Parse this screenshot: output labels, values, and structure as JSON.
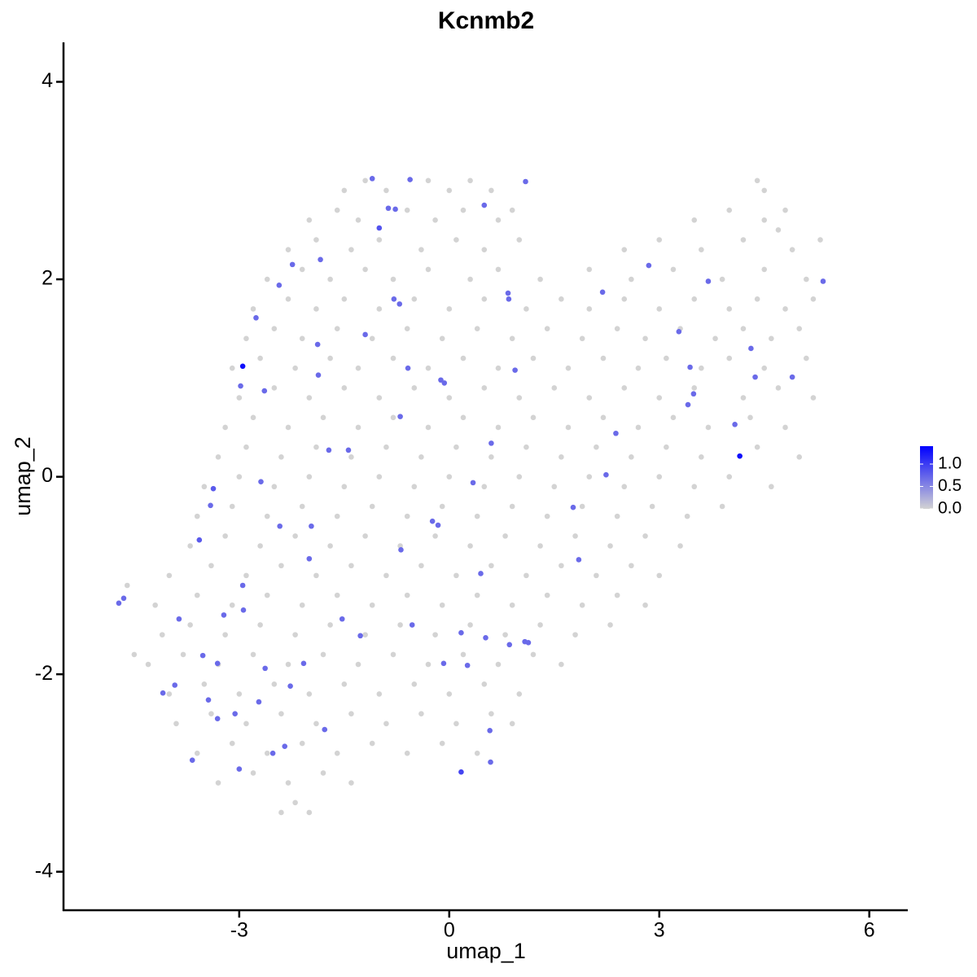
{
  "chart_data": {
    "type": "scatter",
    "title": "Kcnmb2",
    "x_label": "umap_1",
    "y_label": "umap_2",
    "xlim": [
      -5.51,
      6.55
    ],
    "ylim": [
      -4.39,
      4.4
    ],
    "xticks": [
      -3,
      0,
      3,
      6
    ],
    "yticks": [
      -4,
      -2,
      0,
      2,
      4
    ],
    "color_low": "#d3d3d3",
    "color_high": "#0000ff",
    "color_lim": [
      0,
      1.4
    ],
    "legend_ticks": [
      {
        "value": 0,
        "label": "0.0"
      },
      {
        "value": 0.5,
        "label": "0.5"
      },
      {
        "value": 1,
        "label": "1.0"
      }
    ],
    "x": [
      -1.5,
      -1.2,
      -0.9,
      -0.3,
      0,
      0.3,
      0.6,
      4.4,
      4.5,
      -2,
      -1.6,
      -1.3,
      -0.6,
      -0.2,
      0.2,
      0.7,
      0.9,
      3.5,
      4,
      4.5,
      4.8,
      4.7,
      -2.3,
      -1.9,
      -1.4,
      -1,
      -0.4,
      0.1,
      0.5,
      1,
      2.5,
      3,
      3.6,
      4.2,
      4.9,
      5.3,
      -2.6,
      -2.1,
      -1.7,
      -1.2,
      -0.8,
      -0.3,
      0.3,
      0.7,
      1.3,
      2,
      2.6,
      3.2,
      3.9,
      4.5,
      5.1,
      -2.8,
      -2.3,
      -1.9,
      -1.5,
      -1,
      -0.5,
      0,
      0.5,
      1.1,
      1.6,
      2,
      2.5,
      3,
      3.5,
      4,
      4.4,
      4.8,
      5.2,
      -2.9,
      -2.5,
      -2.1,
      -1.6,
      -1.1,
      -0.6,
      -0.1,
      0.4,
      0.9,
      1.4,
      1.9,
      2.4,
      2.8,
      3.3,
      3.8,
      4.2,
      4.6,
      5,
      -3.1,
      -2.7,
      -2.2,
      -1.7,
      -1.3,
      -0.8,
      -0.3,
      0.2,
      0.7,
      1.2,
      1.7,
      2.2,
      2.7,
      3.1,
      3.6,
      4,
      4.5,
      5.1,
      -3,
      -2.5,
      -2,
      -1.5,
      -1,
      -0.5,
      0,
      0.5,
      1,
      1.5,
      2,
      2.5,
      3,
      3.5,
      4.2,
      4.7,
      5.2,
      -3.2,
      -2.8,
      -2.3,
      -1.8,
      -1.3,
      -0.8,
      -0.3,
      0.2,
      0.7,
      1.2,
      1.7,
      2.2,
      2.7,
      3.2,
      3.7,
      4.3,
      4.8,
      -3.3,
      -2.9,
      -2.4,
      -1.9,
      -1.4,
      -0.9,
      -0.4,
      0.1,
      0.6,
      1.1,
      1.6,
      2.1,
      2.6,
      3.1,
      3.6,
      4.4,
      5,
      -3.5,
      -3,
      -2.5,
      -2,
      -1.5,
      -1,
      -0.5,
      0,
      0.5,
      1,
      1.5,
      2,
      2.5,
      3,
      3.5,
      4,
      4.6,
      -3.6,
      -3.1,
      -2.6,
      -2.1,
      -1.6,
      -1.1,
      -0.6,
      -0.1,
      0.4,
      0.9,
      1.4,
      1.9,
      2.4,
      2.9,
      3.4,
      3.9,
      -3.7,
      -3.2,
      -2.7,
      -2.2,
      -1.7,
      -1.2,
      -0.7,
      -0.2,
      0.3,
      0.8,
      1.3,
      1.8,
      2.3,
      2.8,
      3.3,
      -4,
      -3.4,
      -2.9,
      -2.4,
      -1.9,
      -1.4,
      -0.9,
      -0.4,
      0.1,
      0.6,
      1.1,
      1.6,
      2.1,
      2.6,
      3,
      -4.2,
      -3.6,
      -3.1,
      -2.6,
      -2.1,
      -1.6,
      -1.1,
      -0.6,
      -0.1,
      0.4,
      0.9,
      1.4,
      1.9,
      2.4,
      2.8,
      -4.1,
      -3.7,
      -3.2,
      -2.7,
      -2.2,
      -1.7,
      -1.2,
      -0.7,
      -0.2,
      0.3,
      0.8,
      1.3,
      1.8,
      2.3,
      -4.3,
      -3.8,
      -3.3,
      -2.8,
      -2.3,
      -1.8,
      -1.3,
      -0.8,
      -0.3,
      0.2,
      0.7,
      1.2,
      1.6,
      -4,
      -3.5,
      -3,
      -2.5,
      -2,
      -1.5,
      -1,
      -0.5,
      0,
      0.5,
      1,
      -3.9,
      -3.4,
      -2.9,
      -2.4,
      -1.9,
      -1.4,
      -0.9,
      -0.4,
      0.1,
      0.6,
      0.9,
      -3.6,
      -3.1,
      -2.6,
      -2.1,
      -1.6,
      -1.1,
      -0.6,
      -0.1,
      0.4,
      -3.3,
      -2.8,
      -2.3,
      -1.8,
      -1.4,
      -2.4,
      -2,
      -2.2,
      -4.5,
      -4.6,
      -4.72,
      -4.65,
      -3.57,
      -3.37,
      -3.41,
      -2.98,
      -2.64,
      -2.76,
      -2.43,
      -2.24,
      -1.84,
      -1.88,
      -1.87,
      -1.72,
      -1.44,
      -1,
      -1.1,
      -0.87,
      -0.77,
      -0.56,
      0.5,
      1.09,
      -1.2,
      -0.79,
      -0.71,
      -0.59,
      -0.12,
      -0.07,
      -0.7,
      0.6,
      0.34,
      -0.24,
      -0.16,
      -0.69,
      -2.42,
      -1.97,
      -2.69,
      -2,
      -2.95,
      -2.94,
      -3.22,
      -3.86,
      -3.52,
      -3.31,
      -4.09,
      -3.92,
      -3.44,
      -2.72,
      -2.63,
      -2.08,
      -2.27,
      -3.06,
      -3.31,
      -3.67,
      -3,
      -2.52,
      -2.35,
      -1.78,
      -1.53,
      -1.27,
      -0.53,
      -0.08,
      0.17,
      0.26,
      0.52,
      0.45,
      0.58,
      0.59,
      0.86,
      1.08,
      1.13,
      0.84,
      0.85,
      0.94,
      1.77,
      1.85,
      2.24,
      2.38,
      2.19,
      2.85,
      3.28,
      3.44,
      3.49,
      3.41,
      3.7,
      4.08,
      4.31,
      4.37,
      4.9,
      5.34,
      0.17,
      -2.95,
      4.15
    ],
    "y": [
      2.9,
      3,
      2.9,
      3,
      2.9,
      3,
      2.9,
      3,
      2.9,
      2.6,
      2.7,
      2.6,
      2.7,
      2.6,
      2.7,
      2.6,
      2.7,
      2.6,
      2.7,
      2.6,
      2.7,
      2.5,
      2.3,
      2.4,
      2.3,
      2.4,
      2.3,
      2.4,
      2.3,
      2.4,
      2.3,
      2.4,
      2.3,
      2.4,
      2.3,
      2.4,
      2,
      2.1,
      2,
      2.1,
      2,
      2.1,
      2,
      2.1,
      2,
      2.1,
      2,
      2.1,
      2,
      2.1,
      2,
      1.7,
      1.8,
      1.7,
      1.8,
      1.7,
      1.8,
      1.7,
      1.8,
      1.7,
      1.8,
      1.7,
      1.8,
      1.7,
      1.8,
      1.7,
      1.8,
      1.7,
      1.8,
      1.4,
      1.5,
      1.4,
      1.5,
      1.4,
      1.5,
      1.4,
      1.5,
      1.4,
      1.5,
      1.4,
      1.5,
      1.4,
      1.5,
      1.4,
      1.5,
      1.4,
      1.5,
      1.1,
      1.2,
      1.1,
      1.2,
      1.1,
      1.2,
      1.1,
      1.2,
      1.1,
      1.2,
      1.1,
      1.2,
      1.1,
      1.2,
      1.1,
      1.2,
      1.1,
      1.2,
      0.8,
      0.9,
      0.8,
      0.9,
      0.8,
      0.9,
      0.8,
      0.9,
      0.8,
      0.9,
      0.8,
      0.9,
      0.8,
      0.9,
      0.8,
      0.9,
      0.8,
      0.5,
      0.6,
      0.5,
      0.6,
      0.5,
      0.6,
      0.5,
      0.6,
      0.5,
      0.6,
      0.5,
      0.6,
      0.5,
      0.6,
      0.5,
      0.6,
      0.5,
      0.2,
      0.3,
      0.2,
      0.3,
      0.2,
      0.3,
      0.2,
      0.3,
      0.2,
      0.3,
      0.2,
      0.3,
      0.2,
      0.3,
      0.2,
      0.3,
      0.2,
      -0.1,
      0,
      -0.1,
      0,
      -0.1,
      0,
      -0.1,
      0,
      -0.1,
      0,
      -0.1,
      0,
      -0.1,
      0,
      -0.1,
      0,
      -0.1,
      -0.4,
      -0.3,
      -0.4,
      -0.3,
      -0.4,
      -0.3,
      -0.4,
      -0.3,
      -0.4,
      -0.3,
      -0.4,
      -0.3,
      -0.4,
      -0.3,
      -0.4,
      -0.3,
      -0.7,
      -0.6,
      -0.7,
      -0.6,
      -0.7,
      -0.6,
      -0.7,
      -0.6,
      -0.7,
      -0.6,
      -0.7,
      -0.6,
      -0.7,
      -0.6,
      -0.7,
      -1,
      -0.9,
      -1,
      -0.9,
      -1,
      -0.9,
      -1,
      -0.9,
      -1,
      -0.9,
      -1,
      -0.9,
      -1,
      -0.9,
      -1,
      -1.3,
      -1.2,
      -1.3,
      -1.2,
      -1.3,
      -1.2,
      -1.3,
      -1.2,
      -1.3,
      -1.2,
      -1.3,
      -1.2,
      -1.3,
      -1.2,
      -1.3,
      -1.6,
      -1.5,
      -1.6,
      -1.5,
      -1.6,
      -1.5,
      -1.6,
      -1.5,
      -1.6,
      -1.5,
      -1.6,
      -1.5,
      -1.6,
      -1.5,
      -1.9,
      -1.8,
      -1.9,
      -1.8,
      -1.9,
      -1.8,
      -1.9,
      -1.8,
      -1.9,
      -1.8,
      -1.9,
      -1.8,
      -1.9,
      -2.2,
      -2.1,
      -2.2,
      -2.1,
      -2.2,
      -2.1,
      -2.2,
      -2.1,
      -2.2,
      -2.1,
      -2.2,
      -2.5,
      -2.4,
      -2.5,
      -2.4,
      -2.5,
      -2.4,
      -2.5,
      -2.4,
      -2.5,
      -2.4,
      -2.5,
      -2.8,
      -2.7,
      -2.8,
      -2.7,
      -2.8,
      -2.7,
      -2.8,
      -2.7,
      -2.8,
      -3.1,
      -3,
      -3.1,
      -3,
      -3.1,
      -3.4,
      -3.4,
      -3.3,
      -1.8,
      -1.1,
      -1.28,
      -1.23,
      -0.64,
      -0.12,
      -0.29,
      0.92,
      0.87,
      1.61,
      1.94,
      2.15,
      2.2,
      1.34,
      1.03,
      0.27,
      0.27,
      2.52,
      3.02,
      2.72,
      2.71,
      3.01,
      2.75,
      2.99,
      1.44,
      1.8,
      1.75,
      1.1,
      0.98,
      0.95,
      0.61,
      0.34,
      -0.06,
      -0.45,
      -0.49,
      -0.74,
      -0.5,
      -0.5,
      -0.05,
      -0.83,
      -1.1,
      -1.35,
      -1.4,
      -1.44,
      -1.81,
      -1.89,
      -2.19,
      -2.11,
      -2.26,
      -2.28,
      -1.94,
      -1.89,
      -2.12,
      -2.4,
      -2.45,
      -2.87,
      -2.96,
      -2.8,
      -2.73,
      -2.56,
      -1.44,
      -1.61,
      -1.5,
      -1.89,
      -1.58,
      -1.91,
      -1.63,
      -0.98,
      -2.57,
      -2.89,
      -1.7,
      -1.67,
      -1.68,
      1.86,
      1.8,
      1.08,
      -0.31,
      -0.84,
      0.02,
      0.44,
      1.87,
      2.14,
      1.47,
      1.11,
      0.84,
      0.73,
      1.98,
      0.53,
      1.3,
      1.01,
      1.01,
      1.98,
      -2.99,
      1.12,
      0.21
    ],
    "values": [
      0,
      0,
      0,
      0,
      0,
      0,
      0,
      0,
      0,
      0,
      0,
      0,
      0,
      0,
      0,
      0,
      0,
      0,
      0,
      0,
      0,
      0,
      0,
      0,
      0,
      0,
      0,
      0,
      0,
      0,
      0,
      0,
      0,
      0,
      0,
      0,
      0,
      0,
      0,
      0,
      0,
      0,
      0,
      0,
      0,
      0,
      0,
      0,
      0,
      0,
      0,
      0,
      0,
      0,
      0,
      0,
      0,
      0,
      0,
      0,
      0,
      0,
      0,
      0,
      0,
      0,
      0,
      0,
      0,
      0,
      0,
      0,
      0,
      0,
      0,
      0,
      0,
      0,
      0,
      0,
      0,
      0,
      0,
      0,
      0,
      0,
      0,
      0,
      0,
      0,
      0,
      0,
      0,
      0,
      0,
      0,
      0,
      0,
      0,
      0,
      0,
      0,
      0,
      0,
      0,
      0,
      0,
      0,
      0,
      0,
      0,
      0,
      0,
      0,
      0,
      0,
      0,
      0,
      0,
      0,
      0,
      0,
      0,
      0,
      0,
      0,
      0,
      0,
      0,
      0,
      0,
      0,
      0,
      0,
      0,
      0,
      0,
      0,
      0,
      0,
      0,
      0,
      0,
      0,
      0,
      0,
      0,
      0,
      0,
      0,
      0,
      0,
      0,
      0,
      0,
      0,
      0,
      0,
      0,
      0,
      0,
      0,
      0,
      0,
      0,
      0,
      0,
      0,
      0,
      0,
      0,
      0,
      0,
      0,
      0,
      0,
      0,
      0,
      0,
      0,
      0,
      0,
      0,
      0,
      0,
      0,
      0,
      0,
      0,
      0,
      0,
      0,
      0,
      0,
      0,
      0,
      0,
      0,
      0,
      0,
      0,
      0,
      0,
      0,
      0,
      0,
      0,
      0,
      0,
      0,
      0,
      0,
      0,
      0,
      0,
      0,
      0,
      0,
      0,
      0,
      0,
      0,
      0,
      0,
      0,
      0,
      0,
      0,
      0,
      0,
      0,
      0,
      0,
      0,
      0,
      0,
      0,
      0,
      0,
      0,
      0,
      0,
      0,
      0,
      0,
      0,
      0,
      0,
      0,
      0,
      0,
      0,
      0,
      0,
      0,
      0,
      0,
      0,
      0,
      0,
      0,
      0,
      0,
      0,
      0,
      0,
      0,
      0,
      0,
      0,
      0,
      0,
      0,
      0,
      0,
      0,
      0,
      0,
      0,
      0,
      0,
      0,
      0,
      0,
      0,
      0,
      0,
      0,
      0,
      0,
      0,
      0,
      0,
      0,
      0,
      0,
      0,
      0,
      0,
      0,
      0,
      0,
      0.7,
      0.7,
      0.8,
      0.8,
      0.7,
      0.7,
      0.7,
      0.7,
      0.7,
      0.7,
      0.7,
      0.7,
      0.7,
      0.7,
      0.7,
      0.85,
      0.7,
      0.7,
      0.7,
      0.7,
      0.7,
      0.7,
      0.7,
      0.7,
      0.7,
      0.7,
      0.7,
      0.7,
      0.7,
      0.7,
      0.7,
      0.7,
      0.7,
      0.7,
      0.7,
      0.7,
      0.7,
      0.7,
      0.7,
      0.7,
      0.7,
      0.7,
      0.7,
      0.7,
      0.7,
      0.7,
      0.7,
      0.7,
      0.7,
      0.7,
      0.7,
      0.7,
      0.7,
      0.7,
      0.7,
      0.7,
      0.7,
      0.7,
      0.7,
      0.7,
      0.7,
      0.7,
      0.7,
      0.7,
      0.7,
      0.7,
      0.7,
      0.7,
      0.7,
      0.7,
      0.7,
      0.7,
      0.7,
      0.7,
      0.7,
      0.7,
      0.7,
      0.7,
      0.7,
      0.7,
      0.7,
      0.7,
      0.7,
      0.7,
      0.7,
      0.7,
      0.7,
      0.7,
      0.7,
      0.7,
      0.95,
      1.3,
      1.3
    ]
  }
}
